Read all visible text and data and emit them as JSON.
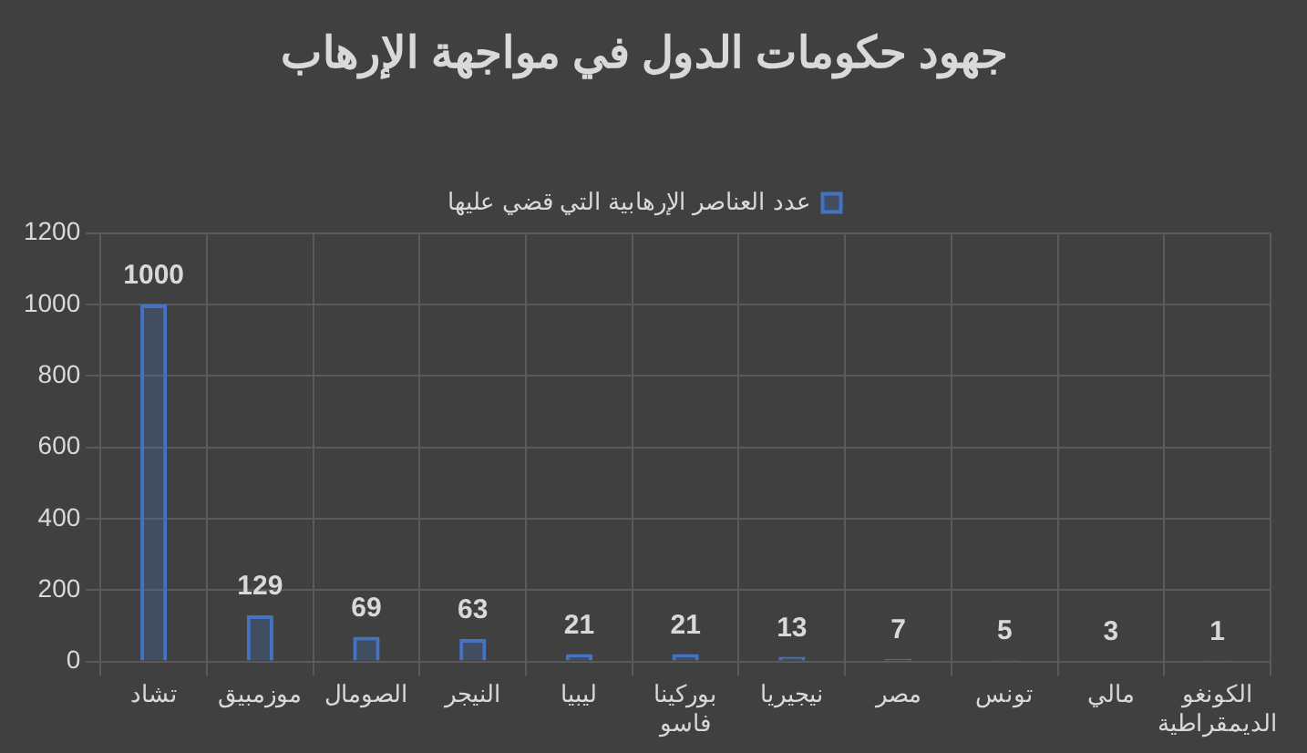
{
  "chart_data": {
    "type": "bar",
    "title": "جهود حكومات الدول في مواجهة الإرهاب",
    "categories": [
      "تشاد",
      "موزمبيق",
      "الصومال",
      "النيجر",
      "ليبيا",
      "بوركينا فاسو",
      "نيجيريا",
      "مصر",
      "تونس",
      "مالي",
      "الكونغو الديمقراطية"
    ],
    "series": [
      {
        "name": "عدد العناصر الإرهابية التي قضي عليها",
        "color": "#4472c4",
        "values": [
          1000,
          129,
          69,
          63,
          21,
          21,
          13,
          7,
          5,
          3,
          1
        ]
      }
    ],
    "ylim": [
      0,
      1200
    ],
    "yticks": [
      0,
      200,
      400,
      600,
      800,
      1000,
      1200
    ],
    "grid": true,
    "legend": "top",
    "data_labels": true
  }
}
